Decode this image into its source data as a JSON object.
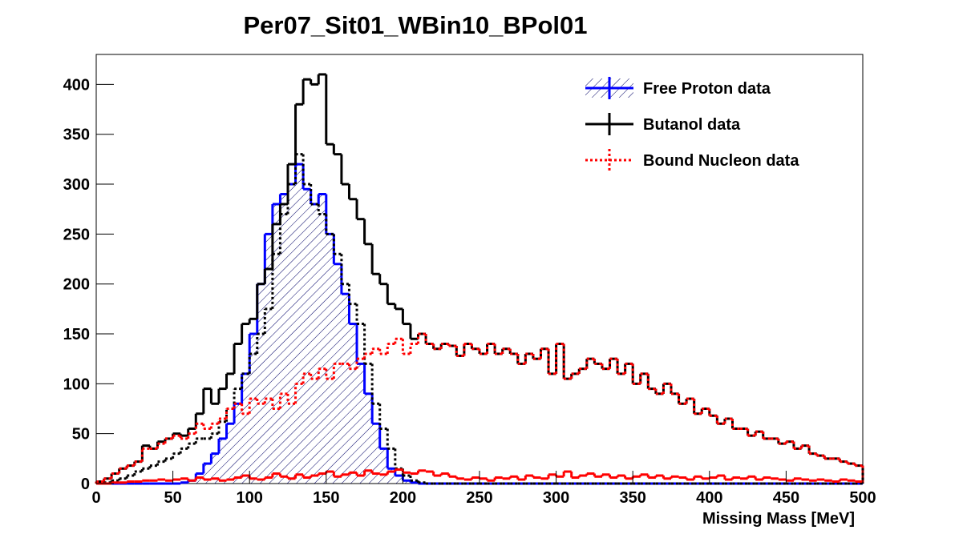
{
  "chart_data": {
    "type": "histogram",
    "title": "Per07_Sit01_WBin10_BPol01",
    "x_label": "Missing Mass [MeV]",
    "xlim": [
      0,
      500
    ],
    "ylim": [
      0,
      430
    ],
    "xticks": [
      0,
      50,
      100,
      150,
      200,
      250,
      300,
      350,
      400,
      450,
      500
    ],
    "yticks": [
      0,
      50,
      100,
      150,
      200,
      250,
      300,
      350,
      400
    ],
    "legend": "top-right",
    "bins": [
      0,
      5,
      10,
      15,
      20,
      25,
      30,
      35,
      40,
      45,
      50,
      55,
      60,
      65,
      70,
      75,
      80,
      85,
      90,
      95,
      100,
      105,
      110,
      115,
      120,
      125,
      130,
      135,
      140,
      145,
      150,
      155,
      160,
      165,
      170,
      175,
      180,
      185,
      190,
      195,
      200,
      205,
      210,
      215,
      220,
      225,
      230,
      235,
      240,
      245,
      250,
      255,
      260,
      265,
      270,
      275,
      280,
      285,
      290,
      295,
      300,
      305,
      310,
      315,
      320,
      325,
      330,
      335,
      340,
      345,
      350,
      355,
      360,
      365,
      370,
      375,
      380,
      385,
      390,
      395,
      400,
      405,
      410,
      415,
      420,
      425,
      430,
      435,
      440,
      445,
      450,
      455,
      460,
      465,
      470,
      475,
      480,
      485,
      490,
      495,
      500
    ],
    "series": [
      {
        "name": "Free Proton data",
        "color": "#0000ff",
        "style": "solid",
        "hatch": true,
        "values": [
          0,
          0,
          0,
          0,
          0,
          0,
          0,
          0,
          0,
          0,
          0,
          1,
          3,
          10,
          20,
          30,
          45,
          60,
          80,
          110,
          150,
          200,
          250,
          280,
          290,
          300,
          320,
          295,
          280,
          290,
          250,
          220,
          190,
          160,
          120,
          90,
          60,
          35,
          15,
          8,
          3,
          1,
          0,
          0,
          0,
          0,
          0,
          0,
          0,
          0,
          0,
          0,
          0,
          0,
          0,
          0,
          0,
          0,
          0,
          0,
          0,
          0,
          0,
          0,
          0,
          0,
          0,
          0,
          0,
          0,
          0,
          0,
          0,
          0,
          0,
          0,
          0,
          0,
          0,
          0,
          0,
          0,
          0,
          0,
          0,
          0,
          0,
          0,
          0,
          0,
          0,
          0,
          0,
          0,
          0,
          0,
          0,
          0,
          0,
          0
        ]
      },
      {
        "color": "#000000",
        "style": "dotted",
        "hatch": false,
        "values": [
          0,
          1,
          3,
          5,
          8,
          12,
          15,
          18,
          22,
          25,
          30,
          35,
          40,
          45,
          45,
          50,
          62,
          75,
          95,
          110,
          130,
          150,
          175,
          230,
          270,
          300,
          330,
          300,
          280,
          270,
          250,
          230,
          200,
          180,
          160,
          120,
          80,
          55,
          35,
          15,
          8,
          3,
          1,
          0,
          0,
          0,
          0,
          0,
          0,
          0,
          0,
          0,
          0,
          0,
          0,
          0,
          0,
          0,
          0,
          0,
          0,
          0,
          0,
          0,
          0,
          0,
          0,
          0,
          0,
          0,
          0,
          0,
          0,
          0,
          0,
          0,
          0,
          0,
          0,
          0,
          0,
          0,
          0,
          0,
          0,
          0,
          0,
          0,
          0,
          0,
          0,
          0,
          0,
          0,
          0,
          0,
          0,
          0,
          0,
          0
        ]
      },
      {
        "color": "#ff0000",
        "style": "solid",
        "hatch": false,
        "values": [
          0,
          0,
          1,
          1,
          2,
          2,
          3,
          3,
          4,
          3,
          4,
          5,
          3,
          6,
          4,
          5,
          3,
          4,
          6,
          8,
          5,
          4,
          6,
          10,
          7,
          5,
          9,
          6,
          8,
          10,
          12,
          7,
          9,
          11,
          8,
          13,
          10,
          9,
          12,
          14,
          11,
          10,
          13,
          12,
          8,
          10,
          7,
          5,
          4,
          6,
          5,
          3,
          6,
          5,
          7,
          4,
          8,
          6,
          5,
          9,
          7,
          12,
          6,
          8,
          10,
          7,
          9,
          6,
          8,
          5,
          7,
          9,
          6,
          8,
          5,
          7,
          6,
          4,
          7,
          5,
          6,
          8,
          4,
          6,
          5,
          7,
          4,
          6,
          5,
          4,
          3,
          5,
          4,
          3,
          4,
          3,
          2,
          4,
          3,
          2
        ]
      },
      {
        "name": "Butanol data",
        "color": "#000000",
        "style": "solid",
        "hatch": false,
        "values": [
          2,
          5,
          10,
          15,
          18,
          22,
          38,
          35,
          42,
          45,
          50,
          48,
          55,
          70,
          95,
          80,
          95,
          110,
          140,
          160,
          165,
          200,
          215,
          260,
          280,
          320,
          380,
          405,
          400,
          410,
          340,
          330,
          300,
          285,
          265,
          240,
          210,
          200,
          180,
          175,
          160,
          145,
          150,
          140,
          135,
          140,
          138,
          128,
          140,
          135,
          130,
          140,
          130,
          135,
          130,
          120,
          130,
          125,
          135,
          110,
          140,
          105,
          110,
          115,
          125,
          120,
          115,
          125,
          110,
          120,
          100,
          110,
          95,
          90,
          100,
          90,
          80,
          85,
          70,
          75,
          68,
          60,
          65,
          55,
          55,
          48,
          52,
          45,
          45,
          40,
          42,
          35,
          38,
          30,
          28,
          25,
          25,
          22,
          20,
          18
        ]
      },
      {
        "name": "Bound Nucleon data",
        "color": "#ff0000",
        "style": "dotted",
        "hatch": false,
        "values": [
          2,
          5,
          10,
          15,
          18,
          22,
          35,
          35,
          40,
          45,
          48,
          45,
          50,
          60,
          55,
          60,
          65,
          75,
          80,
          70,
          85,
          80,
          85,
          75,
          90,
          80,
          100,
          110,
          105,
          115,
          105,
          120,
          120,
          115,
          125,
          130,
          135,
          130,
          140,
          145,
          130,
          140,
          150,
          140,
          135,
          140,
          138,
          128,
          140,
          135,
          130,
          140,
          130,
          135,
          130,
          120,
          130,
          125,
          135,
          110,
          140,
          105,
          110,
          115,
          125,
          120,
          115,
          125,
          110,
          120,
          100,
          110,
          95,
          90,
          100,
          90,
          80,
          85,
          70,
          75,
          68,
          60,
          65,
          55,
          55,
          48,
          52,
          45,
          45,
          40,
          42,
          35,
          38,
          30,
          28,
          25,
          25,
          22,
          20,
          18
        ]
      }
    ]
  }
}
